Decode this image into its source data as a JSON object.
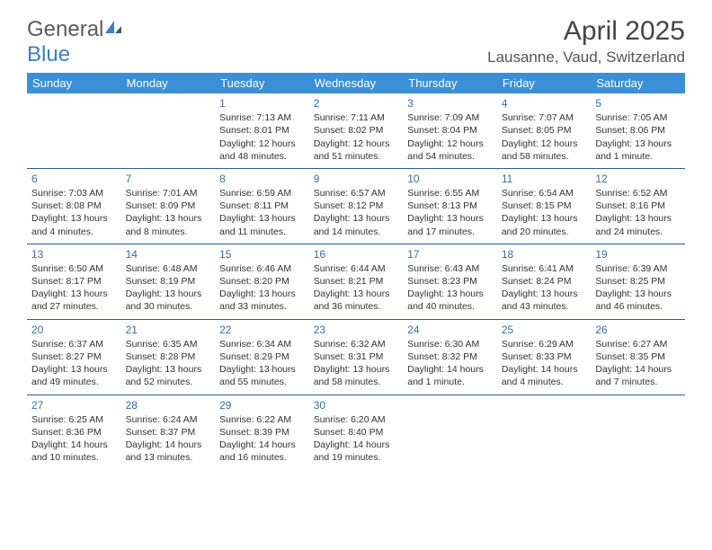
{
  "logo": {
    "part1": "General",
    "part2": "Blue"
  },
  "title": "April 2025",
  "location": "Lausanne, Vaud, Switzerland",
  "colors": {
    "header_bg": "#3b8fd6",
    "header_text": "#ffffff",
    "daynum": "#3a6ea0",
    "rule": "#2b5f8f",
    "logo_gray": "#5a5a5a",
    "logo_blue": "#3b7fc4"
  },
  "dayNames": [
    "Sunday",
    "Monday",
    "Tuesday",
    "Wednesday",
    "Thursday",
    "Friday",
    "Saturday"
  ],
  "weeks": [
    [
      null,
      null,
      {
        "n": "1",
        "sr": "Sunrise: 7:13 AM",
        "ss": "Sunset: 8:01 PM",
        "d1": "Daylight: 12 hours",
        "d2": "and 48 minutes."
      },
      {
        "n": "2",
        "sr": "Sunrise: 7:11 AM",
        "ss": "Sunset: 8:02 PM",
        "d1": "Daylight: 12 hours",
        "d2": "and 51 minutes."
      },
      {
        "n": "3",
        "sr": "Sunrise: 7:09 AM",
        "ss": "Sunset: 8:04 PM",
        "d1": "Daylight: 12 hours",
        "d2": "and 54 minutes."
      },
      {
        "n": "4",
        "sr": "Sunrise: 7:07 AM",
        "ss": "Sunset: 8:05 PM",
        "d1": "Daylight: 12 hours",
        "d2": "and 58 minutes."
      },
      {
        "n": "5",
        "sr": "Sunrise: 7:05 AM",
        "ss": "Sunset: 8:06 PM",
        "d1": "Daylight: 13 hours",
        "d2": "and 1 minute."
      }
    ],
    [
      {
        "n": "6",
        "sr": "Sunrise: 7:03 AM",
        "ss": "Sunset: 8:08 PM",
        "d1": "Daylight: 13 hours",
        "d2": "and 4 minutes."
      },
      {
        "n": "7",
        "sr": "Sunrise: 7:01 AM",
        "ss": "Sunset: 8:09 PM",
        "d1": "Daylight: 13 hours",
        "d2": "and 8 minutes."
      },
      {
        "n": "8",
        "sr": "Sunrise: 6:59 AM",
        "ss": "Sunset: 8:11 PM",
        "d1": "Daylight: 13 hours",
        "d2": "and 11 minutes."
      },
      {
        "n": "9",
        "sr": "Sunrise: 6:57 AM",
        "ss": "Sunset: 8:12 PM",
        "d1": "Daylight: 13 hours",
        "d2": "and 14 minutes."
      },
      {
        "n": "10",
        "sr": "Sunrise: 6:55 AM",
        "ss": "Sunset: 8:13 PM",
        "d1": "Daylight: 13 hours",
        "d2": "and 17 minutes."
      },
      {
        "n": "11",
        "sr": "Sunrise: 6:54 AM",
        "ss": "Sunset: 8:15 PM",
        "d1": "Daylight: 13 hours",
        "d2": "and 20 minutes."
      },
      {
        "n": "12",
        "sr": "Sunrise: 6:52 AM",
        "ss": "Sunset: 8:16 PM",
        "d1": "Daylight: 13 hours",
        "d2": "and 24 minutes."
      }
    ],
    [
      {
        "n": "13",
        "sr": "Sunrise: 6:50 AM",
        "ss": "Sunset: 8:17 PM",
        "d1": "Daylight: 13 hours",
        "d2": "and 27 minutes."
      },
      {
        "n": "14",
        "sr": "Sunrise: 6:48 AM",
        "ss": "Sunset: 8:19 PM",
        "d1": "Daylight: 13 hours",
        "d2": "and 30 minutes."
      },
      {
        "n": "15",
        "sr": "Sunrise: 6:46 AM",
        "ss": "Sunset: 8:20 PM",
        "d1": "Daylight: 13 hours",
        "d2": "and 33 minutes."
      },
      {
        "n": "16",
        "sr": "Sunrise: 6:44 AM",
        "ss": "Sunset: 8:21 PM",
        "d1": "Daylight: 13 hours",
        "d2": "and 36 minutes."
      },
      {
        "n": "17",
        "sr": "Sunrise: 6:43 AM",
        "ss": "Sunset: 8:23 PM",
        "d1": "Daylight: 13 hours",
        "d2": "and 40 minutes."
      },
      {
        "n": "18",
        "sr": "Sunrise: 6:41 AM",
        "ss": "Sunset: 8:24 PM",
        "d1": "Daylight: 13 hours",
        "d2": "and 43 minutes."
      },
      {
        "n": "19",
        "sr": "Sunrise: 6:39 AM",
        "ss": "Sunset: 8:25 PM",
        "d1": "Daylight: 13 hours",
        "d2": "and 46 minutes."
      }
    ],
    [
      {
        "n": "20",
        "sr": "Sunrise: 6:37 AM",
        "ss": "Sunset: 8:27 PM",
        "d1": "Daylight: 13 hours",
        "d2": "and 49 minutes."
      },
      {
        "n": "21",
        "sr": "Sunrise: 6:35 AM",
        "ss": "Sunset: 8:28 PM",
        "d1": "Daylight: 13 hours",
        "d2": "and 52 minutes."
      },
      {
        "n": "22",
        "sr": "Sunrise: 6:34 AM",
        "ss": "Sunset: 8:29 PM",
        "d1": "Daylight: 13 hours",
        "d2": "and 55 minutes."
      },
      {
        "n": "23",
        "sr": "Sunrise: 6:32 AM",
        "ss": "Sunset: 8:31 PM",
        "d1": "Daylight: 13 hours",
        "d2": "and 58 minutes."
      },
      {
        "n": "24",
        "sr": "Sunrise: 6:30 AM",
        "ss": "Sunset: 8:32 PM",
        "d1": "Daylight: 14 hours",
        "d2": "and 1 minute."
      },
      {
        "n": "25",
        "sr": "Sunrise: 6:29 AM",
        "ss": "Sunset: 8:33 PM",
        "d1": "Daylight: 14 hours",
        "d2": "and 4 minutes."
      },
      {
        "n": "26",
        "sr": "Sunrise: 6:27 AM",
        "ss": "Sunset: 8:35 PM",
        "d1": "Daylight: 14 hours",
        "d2": "and 7 minutes."
      }
    ],
    [
      {
        "n": "27",
        "sr": "Sunrise: 6:25 AM",
        "ss": "Sunset: 8:36 PM",
        "d1": "Daylight: 14 hours",
        "d2": "and 10 minutes."
      },
      {
        "n": "28",
        "sr": "Sunrise: 6:24 AM",
        "ss": "Sunset: 8:37 PM",
        "d1": "Daylight: 14 hours",
        "d2": "and 13 minutes."
      },
      {
        "n": "29",
        "sr": "Sunrise: 6:22 AM",
        "ss": "Sunset: 8:39 PM",
        "d1": "Daylight: 14 hours",
        "d2": "and 16 minutes."
      },
      {
        "n": "30",
        "sr": "Sunrise: 6:20 AM",
        "ss": "Sunset: 8:40 PM",
        "d1": "Daylight: 14 hours",
        "d2": "and 19 minutes."
      },
      null,
      null,
      null
    ]
  ]
}
